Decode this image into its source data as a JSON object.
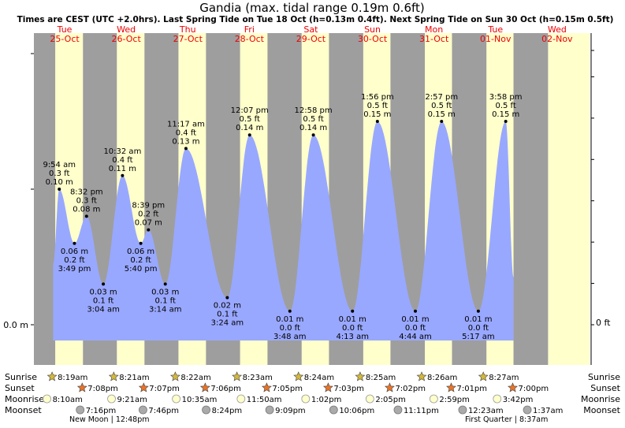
{
  "title": "Gandia (max. tidal range 0.19m 0.6ft)",
  "subtitle": "Times are CEST (UTC +2.0hrs). Last Spring Tide on Tue 18 Oct (h=0.13m 0.4ft). Next Spring Tide on Sun 30 Oct (h=0.15m 0.5ft)",
  "axis_left_label": "0.0 m",
  "axis_right_label": "0 ft",
  "colors": {
    "night": "#9e9e9e",
    "day": "#ffffcc",
    "tide": "#99a8ff",
    "date_text": "#ee0000",
    "sunrise_star": "#d4b83a",
    "sunset_star": "#e8742a",
    "moonrise": "#ffffcc",
    "moonset": "#aaaaaa"
  },
  "days": [
    {
      "dow": "Tue",
      "date": "25-Oct"
    },
    {
      "dow": "Wed",
      "date": "26-Oct"
    },
    {
      "dow": "Thu",
      "date": "27-Oct"
    },
    {
      "dow": "Fri",
      "date": "28-Oct"
    },
    {
      "dow": "Sat",
      "date": "29-Oct"
    },
    {
      "dow": "Sun",
      "date": "30-Oct"
    },
    {
      "dow": "Mon",
      "date": "31-Oct"
    },
    {
      "dow": "Tue",
      "date": "01-Nov"
    },
    {
      "dow": "Wed",
      "date": "02-Nov"
    }
  ],
  "row_labels": [
    "Sunrise",
    "Sunset",
    "Moonrise",
    "Moonset"
  ],
  "sun_moon": [
    {
      "sunrise": "8:19am",
      "sunset": "7:08pm",
      "moonrise": "8:10am",
      "moonset": "7:16pm"
    },
    {
      "sunrise": "8:21am",
      "sunset": "7:07pm",
      "moonrise": "9:21am",
      "moonset": "7:46pm"
    },
    {
      "sunrise": "8:22am",
      "sunset": "7:06pm",
      "moonrise": "10:35am",
      "moonset": "8:24pm"
    },
    {
      "sunrise": "8:23am",
      "sunset": "7:05pm",
      "moonrise": "11:50am",
      "moonset": "9:09pm"
    },
    {
      "sunrise": "8:24am",
      "sunset": "7:03pm",
      "moonrise": "1:02pm",
      "moonset": "10:06pm"
    },
    {
      "sunrise": "8:25am",
      "sunset": "7:02pm",
      "moonrise": "2:05pm",
      "moonset": "11:11pm"
    },
    {
      "sunrise": "8:26am",
      "sunset": "7:01pm",
      "moonrise": "2:59pm",
      "moonset": "12:23am"
    },
    {
      "sunrise": "8:27am",
      "sunset": "7:00pm",
      "moonrise": "3:42pm",
      "moonset": "1:37am"
    }
  ],
  "moon_phases": [
    "New Moon | 12:48pm",
    "First Quarter | 8:37am"
  ],
  "chart_data": {
    "type": "area",
    "title": "Gandia (max. tidal range 0.19m 0.6ft)",
    "xlabel": "",
    "ylabel": "",
    "ylim": [
      -0.017,
      0.2
    ],
    "x_range": [
      "2022-10-25T00:00",
      "2022-11-02T00:00"
    ],
    "series": [
      {
        "points": [
          {
            "day": 0,
            "time": "9:54 am",
            "m": 0.1,
            "ft": "0.3 ft",
            "type": "high"
          },
          {
            "day": 0,
            "time": "3:49 pm",
            "m": 0.06,
            "ft": "0.2 ft",
            "type": "low"
          },
          {
            "day": 0,
            "time": "8:32 pm",
            "m": 0.08,
            "ft": "0.3 ft",
            "type": "high"
          },
          {
            "day": 1,
            "time": "3:04 am",
            "m": 0.03,
            "ft": "0.1 ft",
            "type": "low"
          },
          {
            "day": 1,
            "time": "10:32 am",
            "m": 0.11,
            "ft": "0.4 ft",
            "type": "high"
          },
          {
            "day": 1,
            "time": "5:40 pm",
            "m": 0.06,
            "ft": "0.2 ft",
            "type": "low"
          },
          {
            "day": 1,
            "time": "8:39 pm",
            "m": 0.07,
            "ft": "0.2 ft",
            "type": "high"
          },
          {
            "day": 2,
            "time": "3:14 am",
            "m": 0.03,
            "ft": "0.1 ft",
            "type": "low"
          },
          {
            "day": 2,
            "time": "11:17 am",
            "m": 0.13,
            "ft": "0.4 ft",
            "type": "high"
          },
          {
            "day": 3,
            "time": "3:24 am",
            "m": 0.02,
            "ft": "0.1 ft",
            "type": "low"
          },
          {
            "day": 3,
            "time": "12:07 pm",
            "m": 0.14,
            "ft": "0.5 ft",
            "type": "high"
          },
          {
            "day": 4,
            "time": "3:48 am",
            "m": 0.01,
            "ft": "0.0 ft",
            "type": "low"
          },
          {
            "day": 4,
            "time": "12:58 pm",
            "m": 0.14,
            "ft": "0.5 ft",
            "type": "high"
          },
          {
            "day": 5,
            "time": "4:13 am",
            "m": 0.01,
            "ft": "0.0 ft",
            "type": "low"
          },
          {
            "day": 5,
            "time": "1:56 pm",
            "m": 0.15,
            "ft": "0.5 ft",
            "type": "high"
          },
          {
            "day": 6,
            "time": "4:44 am",
            "m": 0.01,
            "ft": "0.0 ft",
            "type": "low"
          },
          {
            "day": 6,
            "time": "2:57 pm",
            "m": 0.15,
            "ft": "0.5 ft",
            "type": "high"
          },
          {
            "day": 7,
            "time": "5:17 am",
            "m": 0.01,
            "ft": "0.0 ft",
            "type": "low"
          },
          {
            "day": 7,
            "time": "3:58 pm",
            "m": 0.15,
            "ft": "0.5 ft",
            "type": "high"
          }
        ]
      }
    ]
  }
}
